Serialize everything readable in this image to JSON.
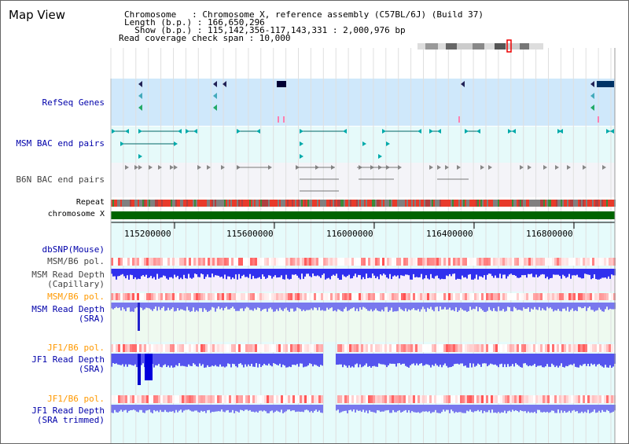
{
  "page": {
    "title": "Map View"
  },
  "info": {
    "chromosome_line": "Chromosome   : Chromosome X, reference assembly (C57BL/6J) (Build 37)",
    "length_line": "Length (b.p.) : 166,650,296",
    "show_line": "  Show (b.p.) : 115,142,356-117,143,331 : 2,000,976 bp",
    "read_coverage_line": "Read coverage check span : 10,000"
  },
  "tracks": {
    "refseq": "RefSeq Genes",
    "msm_bac": "MSM BAC end pairs",
    "b6n_bac": "B6N BAC end pairs",
    "repeat": "Repeat",
    "chromosome": "chromosome X",
    "dbsnp": "dbSNP(Mouse)",
    "msm_b6_pol_1": "MSM/B6 pol.",
    "msm_read_depth_cap_1": "MSM Read Depth",
    "msm_read_depth_cap_2": "(Capillary)",
    "msm_b6_pol_2": "MSM/B6 pol.",
    "msm_read_depth_sra_1": "MSM Read Depth",
    "msm_read_depth_sra_2": "(SRA)",
    "jf1_b6_pol_1": "JF1/B6 pol.",
    "jf1_read_depth_sra_1": "JF1 Read Depth",
    "jf1_read_depth_sra_2": "(SRA)",
    "jf1_b6_pol_2": "JF1/B6 pol.",
    "jf1_read_depth_trim_1": "JF1 Read Depth",
    "jf1_read_depth_trim_2": "(SRA trimmed)"
  },
  "axis": {
    "ticks": [
      "115200000",
      "115600000",
      "116000000",
      "116400000",
      "116800000"
    ]
  },
  "colors": {
    "refseq_bg": "#cfe8fb",
    "msm_bg": "#e6fafa",
    "b6n_bg": "#f4f4f8",
    "chromosome_bar": "#006400",
    "depth_bar": "#0000ee",
    "depth_bar_light": "#7878ee",
    "pol_high": "#ff3333",
    "pol_low": "#ffd8d8",
    "selection_band": "#e6fbfb"
  }
}
